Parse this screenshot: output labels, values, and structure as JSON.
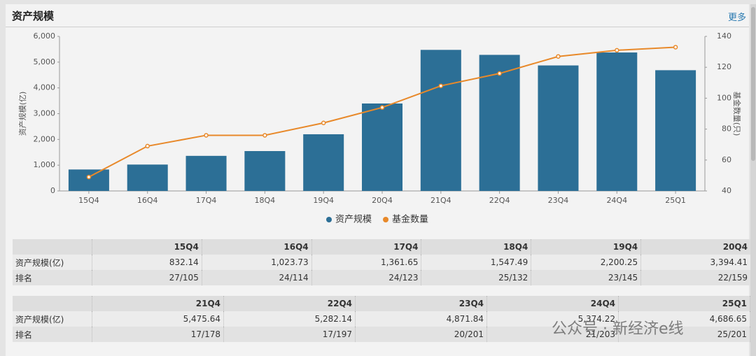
{
  "header": {
    "title": "资产规模",
    "more": "更多"
  },
  "chart_data": {
    "type": "bar-line",
    "y_label": "资产规模(亿)",
    "y2_label": "基金数量(只)",
    "categories": [
      "15Q4",
      "16Q4",
      "17Q4",
      "18Q4",
      "19Q4",
      "20Q4",
      "21Q4",
      "22Q4",
      "23Q4",
      "24Q4",
      "25Q1"
    ],
    "series": [
      {
        "name": "资产规模",
        "type": "bar",
        "color": "#2c6f96",
        "values": [
          832.14,
          1023.73,
          1361.65,
          1547.49,
          2200.25,
          3394.41,
          5475.64,
          5282.14,
          4871.84,
          5374.22,
          4686.65
        ]
      },
      {
        "name": "基金数量",
        "type": "line",
        "axis": "y2",
        "color": "#e8892a",
        "values": [
          49,
          69,
          76,
          76,
          84,
          94,
          108,
          116,
          127,
          131,
          133
        ]
      }
    ],
    "ylim": [
      0,
      6000
    ],
    "yticks": [
      0,
      {
        "value": 1000,
        "label": "1,000"
      },
      {
        "value": 2000,
        "label": "2,000"
      },
      {
        "value": 3000,
        "label": "3,000"
      },
      {
        "value": 4000,
        "label": "4,000"
      },
      {
        "value": 5000,
        "label": "5,000"
      },
      {
        "value": 6000,
        "label": "6,000"
      }
    ],
    "y2lim": [
      40,
      140
    ],
    "y2ticks": [
      40,
      60,
      80,
      100,
      120,
      140
    ],
    "legend": "bottom"
  },
  "tables": [
    {
      "header": [
        "15Q4",
        "16Q4",
        "17Q4",
        "18Q4",
        "19Q4",
        "20Q4"
      ],
      "rows": [
        [
          "资产规模(亿)",
          "832.14",
          "1,023.73",
          "1,361.65",
          "1,547.49",
          "2,200.25",
          "3,394.41"
        ],
        [
          "排名",
          "27/105",
          "24/114",
          "24/123",
          "25/132",
          "23/145",
          "22/159"
        ]
      ]
    },
    {
      "header": [
        "21Q4",
        "22Q4",
        "23Q4",
        "24Q4",
        "25Q1"
      ],
      "rows": [
        [
          "资产规模(亿)",
          "5,475.64",
          "5,282.14",
          "4,871.84",
          "5,374.22",
          "4,686.65"
        ],
        [
          "排名",
          "17/178",
          "17/197",
          "20/201",
          "21/203",
          "25/201"
        ]
      ]
    }
  ],
  "watermark": "公众号 · 新经济e线"
}
